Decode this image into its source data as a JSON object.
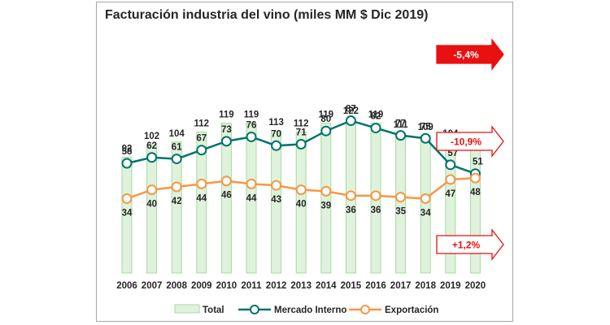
{
  "chart_data": {
    "type": "bar",
    "title": "Facturación industria del vino (miles MM $ Dic 2019)",
    "categories": [
      "2006",
      "2007",
      "2008",
      "2009",
      "2010",
      "2011",
      "2012",
      "2013",
      "2014",
      "2015",
      "2016",
      "2017",
      "2018",
      "2019",
      "2020"
    ],
    "series": [
      {
        "name": "Total",
        "type": "bar",
        "color": "#dff2dc",
        "edge": "#a9d8a2",
        "values": [
          92,
          102,
          104,
          112,
          119,
          119,
          113,
          112,
          119,
          122,
          119,
          111,
          109,
          104,
          99
        ]
      },
      {
        "name": "Mercado Interno",
        "type": "line",
        "color": "#00736b",
        "values": [
          58,
          62,
          61,
          67,
          73,
          76,
          70,
          71,
          80,
          87,
          82,
          77,
          75,
          57,
          51
        ]
      },
      {
        "name": "Exportación",
        "type": "line",
        "color": "#f79646",
        "values": [
          34,
          40,
          42,
          44,
          46,
          44,
          43,
          40,
          39,
          36,
          36,
          35,
          34,
          47,
          48
        ]
      }
    ],
    "callouts": [
      {
        "label": "-5,4%",
        "style": "filled",
        "color": "#e81010"
      },
      {
        "label": "-10,9%",
        "style": "outline",
        "color": "#e81010"
      },
      {
        "label": "+1,2%",
        "style": "outline",
        "color": "#e81010"
      }
    ],
    "legend_position": "bottom",
    "grid": false
  }
}
